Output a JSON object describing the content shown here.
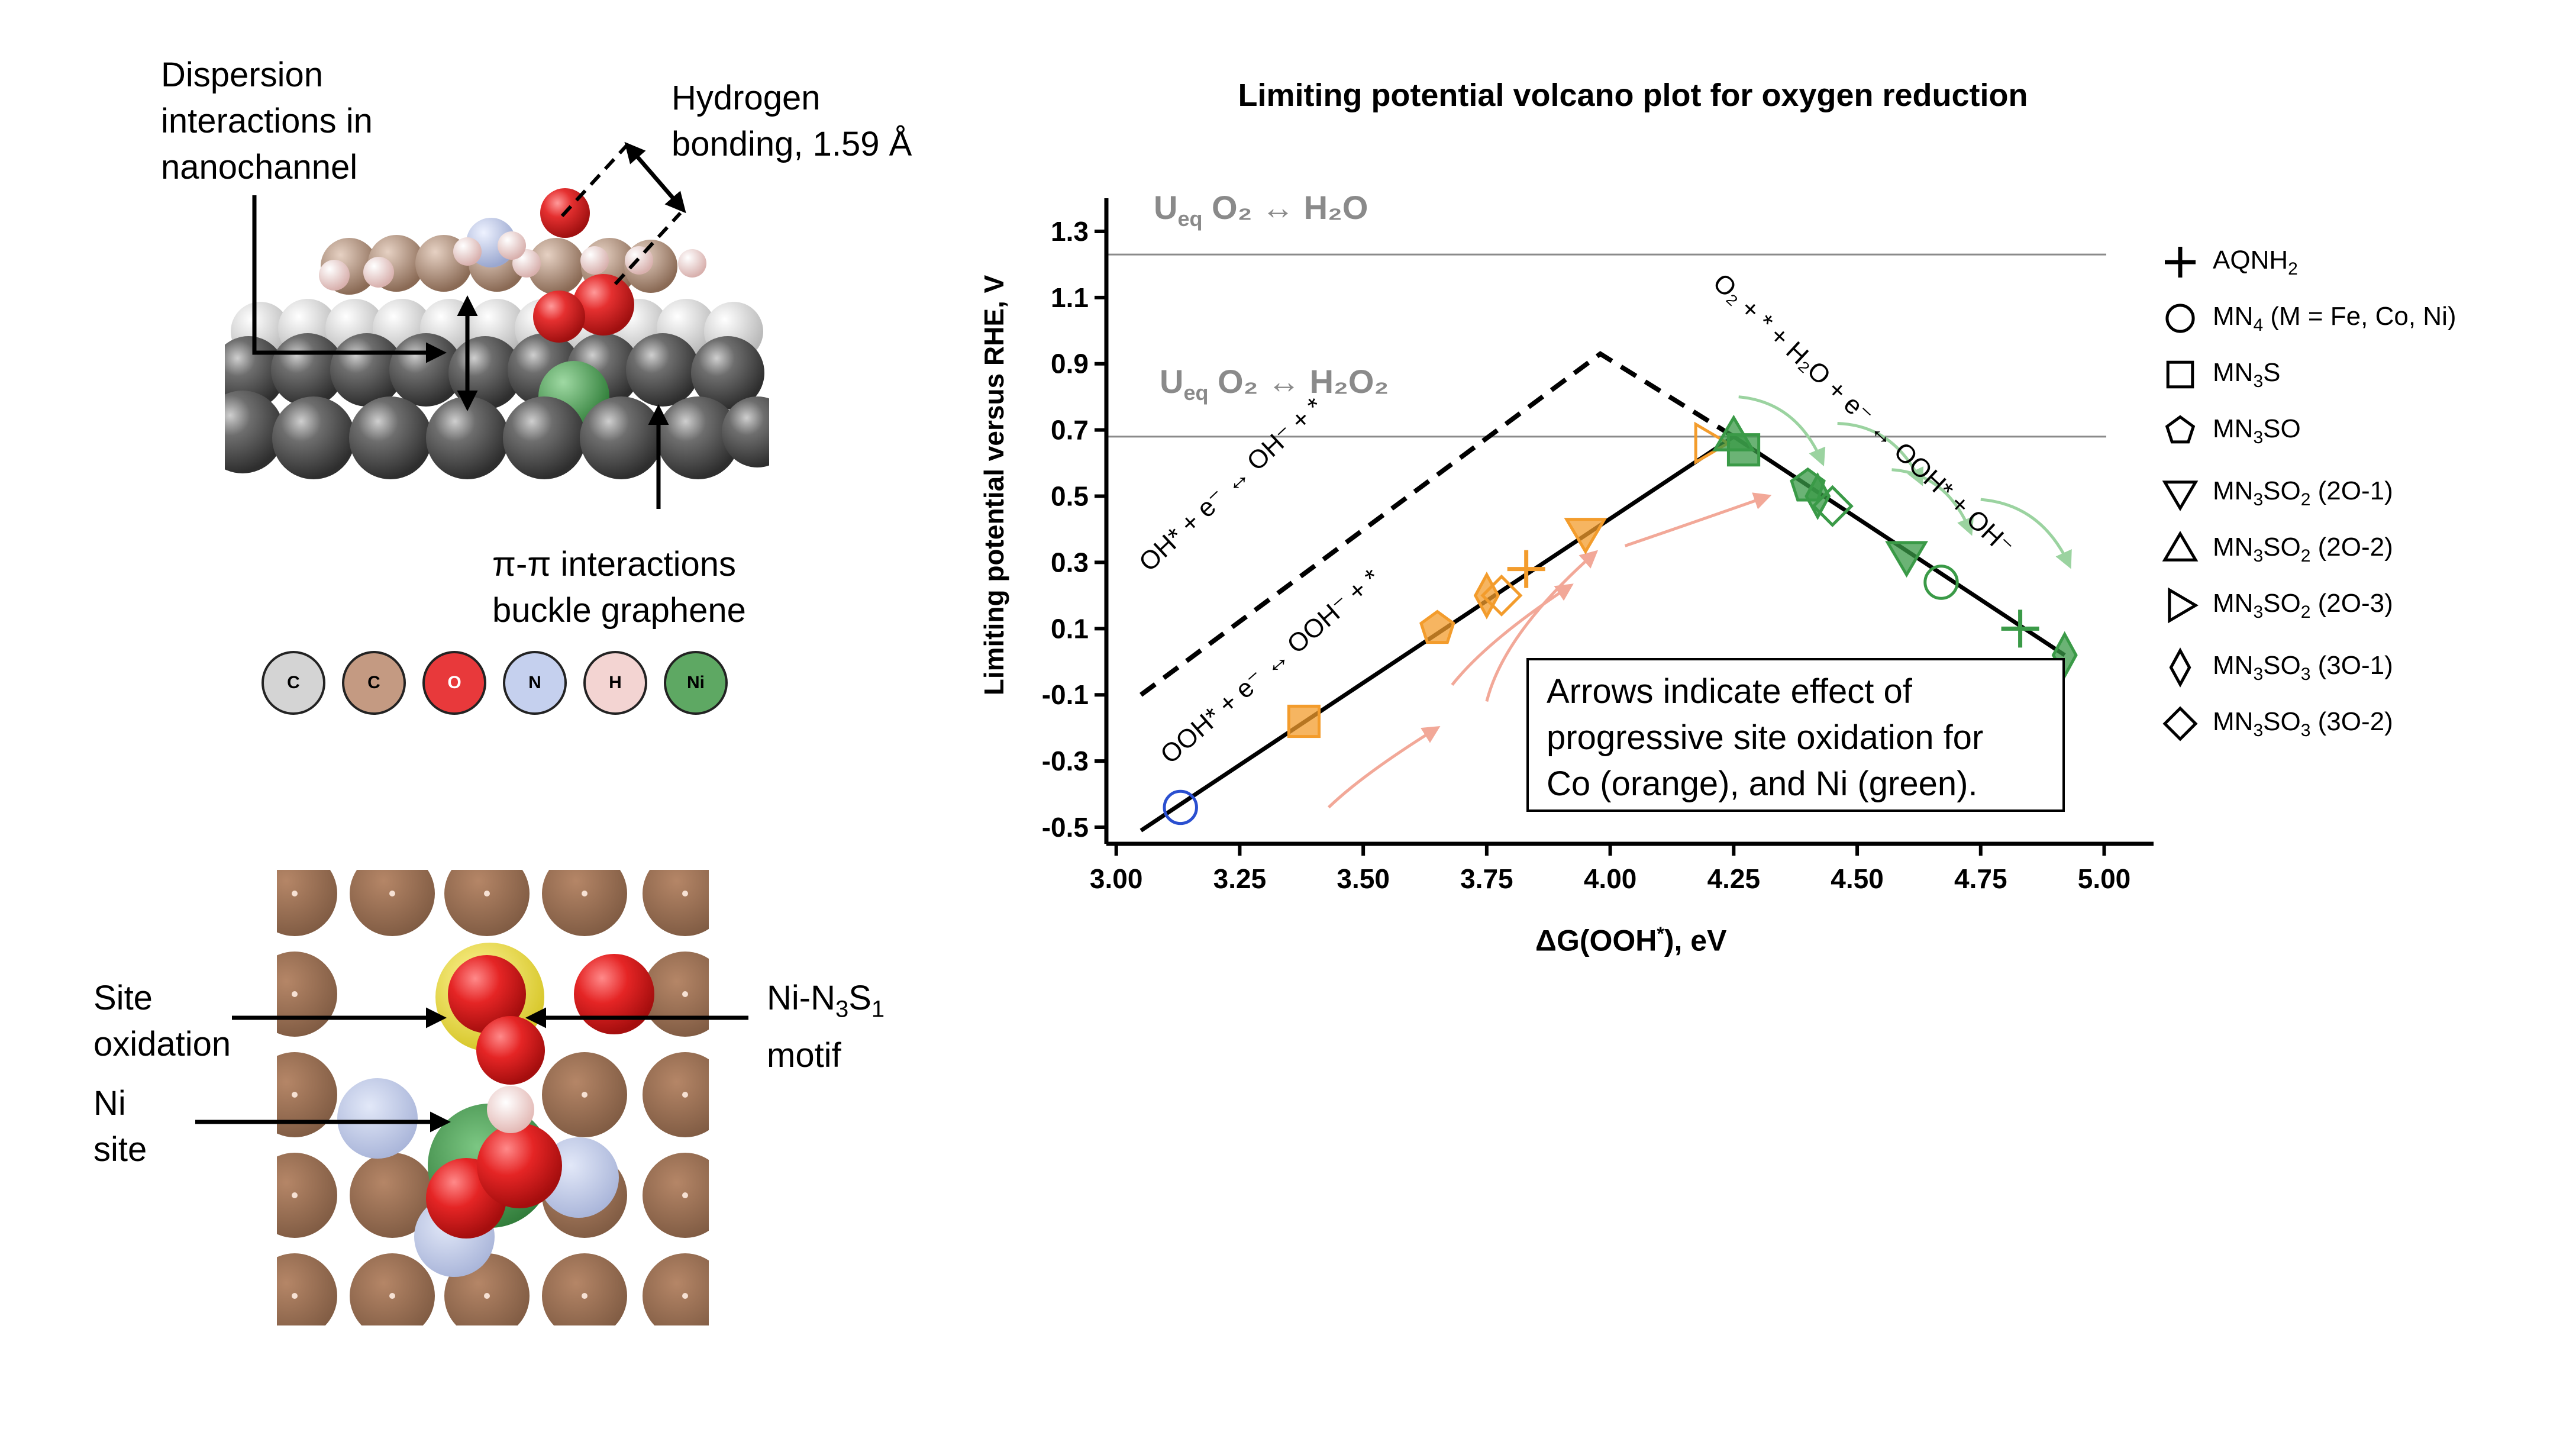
{
  "panel_molecule": {
    "dispersion_label": [
      "Dispersion",
      "interactions in",
      "nanochannel"
    ],
    "hbond_label": [
      "Hydrogen",
      "bonding, 1.59 Å"
    ],
    "pipi_label": [
      "π-π interactions",
      "buckle graphene"
    ],
    "atom_key": [
      {
        "symbol": "C",
        "color": "#d4d4d4"
      },
      {
        "symbol": "C",
        "color": "#c49a82"
      },
      {
        "symbol": "O",
        "color": "#e8393b"
      },
      {
        "symbol": "N",
        "color": "#c5d0ee"
      },
      {
        "symbol": "H",
        "color": "#f3d4d2"
      },
      {
        "symbol": "Ni",
        "color": "#5ea863"
      }
    ]
  },
  "panel_topview": {
    "site_oxidation_label": [
      "Site",
      "oxidation"
    ],
    "ni_site_label": [
      "Ni",
      "site"
    ],
    "motif_label_line1_main": "Ni-N",
    "motif_label_line1_sub1": "3",
    "motif_label_line1_s": "S",
    "motif_label_line1_sub2": "1",
    "motif_label_line2": "motif"
  },
  "chart_data": {
    "type": "scatter",
    "title": "Limiting potential volcano plot for oxygen reduction",
    "xlabel": "ΔG(OOH*), eV",
    "ylabel": "Limiting potential versus RHE, V",
    "xlim": [
      2.98,
      5.1
    ],
    "ylim": [
      -0.55,
      1.4
    ],
    "xticks": [
      "3.00",
      "3.25",
      "3.50",
      "3.75",
      "4.00",
      "4.25",
      "4.50",
      "4.75",
      "5.00"
    ],
    "yticks": [
      "1.3",
      "1.1",
      "0.9",
      "0.7",
      "0.5",
      "0.3",
      "0.1",
      "-0.1",
      "-0.3",
      "-0.5"
    ],
    "ueq_h2o": {
      "value": 1.23,
      "label_main": "U",
      "label_sub": "eq",
      "label_rest": " O₂ ↔ H₂O"
    },
    "ueq_h2o2": {
      "value": 0.68,
      "label_main": "U",
      "label_sub": "eq",
      "label_rest": " O₂ ↔ H₂O₂"
    },
    "volcano_4e": {
      "x": [
        3.05,
        4.25,
        4.92
      ],
      "y": [
        -0.51,
        0.68,
        0.02
      ]
    },
    "volcano_oh": {
      "x": [
        3.05,
        3.98,
        4.25
      ],
      "y": [
        -0.1,
        0.93,
        0.68
      ]
    },
    "line_labels": {
      "oh": "OH* + e⁻ ↔ OH⁻ + *",
      "ooh": "OOH* + e⁻ ↔ OOH⁻ + *",
      "o2": "O₂ + * + H₂O + e⁻ ↔ OOH* + OH⁻"
    },
    "points": [
      {
        "series": "MN4",
        "metal": "Fe",
        "x": 3.13,
        "y": -0.44
      },
      {
        "series": "MN3S",
        "metal": "Co",
        "x": 3.38,
        "y": -0.18
      },
      {
        "series": "MN3SO",
        "metal": "Co",
        "x": 3.65,
        "y": 0.1
      },
      {
        "series": "MN3SO3 (3O-1)",
        "metal": "Co",
        "x": 3.75,
        "y": 0.2
      },
      {
        "series": "MN3SO3 (3O-2)",
        "metal": "Co",
        "x": 3.78,
        "y": 0.2
      },
      {
        "series": "AQNH2",
        "metal": "Co",
        "x": 3.83,
        "y": 0.28
      },
      {
        "series": "MN3SO2 (2O-1)",
        "metal": "Co",
        "x": 3.95,
        "y": 0.39
      },
      {
        "series": "MN3SO2 (2O-3)",
        "metal": "Co",
        "x": 4.2,
        "y": 0.66
      },
      {
        "series": "MN3SO2 (2O-2)",
        "metal": "Ni",
        "x": 4.25,
        "y": 0.68
      },
      {
        "series": "MN3S",
        "metal": "Ni",
        "x": 4.27,
        "y": 0.64
      },
      {
        "series": "MN3SO",
        "metal": "Ni",
        "x": 4.4,
        "y": 0.53
      },
      {
        "series": "MN3SO3 (3O-1)",
        "metal": "Ni",
        "x": 4.42,
        "y": 0.5
      },
      {
        "series": "MN3SO3 (3O-2)",
        "metal": "Ni",
        "x": 4.45,
        "y": 0.47
      },
      {
        "series": "MN3SO2 (2O-1)",
        "metal": "Ni",
        "x": 4.6,
        "y": 0.32
      },
      {
        "series": "MN4",
        "metal": "Ni",
        "x": 4.67,
        "y": 0.24
      },
      {
        "series": "AQNH2",
        "metal": "Ni",
        "x": 4.83,
        "y": 0.1
      },
      {
        "series": "MN3SO3 (3O-1)",
        "metal": "Ni",
        "x": 4.92,
        "y": 0.02
      }
    ],
    "arrows_co": [
      [
        3.43,
        -0.44,
        3.65,
        -0.2
      ],
      [
        3.68,
        -0.07,
        3.92,
        0.23
      ],
      [
        3.75,
        -0.12,
        3.97,
        0.33
      ],
      [
        4.03,
        0.35,
        4.32,
        0.5
      ]
    ],
    "arrows_ni": [
      [
        4.26,
        0.8,
        4.43,
        0.6
      ],
      [
        4.46,
        0.72,
        4.63,
        0.54
      ],
      [
        4.57,
        0.58,
        4.73,
        0.39
      ],
      [
        4.75,
        0.49,
        4.93,
        0.29
      ]
    ],
    "colors": {
      "Co": "#f39c2c",
      "Ni": "#3a9a47",
      "Fe": "#2a4fd0",
      "co_arrow": "#f2a898",
      "ni_arrow": "#9bd3a0"
    },
    "annotation": [
      "Arrows indicate effect of",
      "progressive site oxidation for",
      "Co (orange), and Ni (green)."
    ],
    "legend": [
      {
        "series": "AQNH2",
        "marker": "plus",
        "main": "AQNH",
        "sub": "2",
        "rest": ""
      },
      {
        "series": "MN4",
        "marker": "circle",
        "main": "MN",
        "sub": "4",
        "rest": " (M = Fe, Co, Ni)"
      },
      {
        "series": "MN3S",
        "marker": "square",
        "main": "MN",
        "sub": "3",
        "rest": "S"
      },
      {
        "series": "MN3SO",
        "marker": "pentagon",
        "main": "MN",
        "sub": "3",
        "rest": "SO"
      },
      {
        "series": "MN3SO2 (2O-1)",
        "marker": "tri_down",
        "main": "MN",
        "sub": "3",
        "rest": "SO",
        "sub2": "2",
        "tail": " (2O-1)"
      },
      {
        "series": "MN3SO2 (2O-2)",
        "marker": "tri_up",
        "main": "MN",
        "sub": "3",
        "rest": "SO",
        "sub2": "2",
        "tail": " (2O-2)"
      },
      {
        "series": "MN3SO2 (2O-3)",
        "marker": "tri_right",
        "main": "MN",
        "sub": "3",
        "rest": "SO",
        "sub2": "2",
        "tail": " (2O-3)"
      },
      {
        "series": "MN3SO3 (3O-1)",
        "marker": "thin_diamond",
        "main": "MN",
        "sub": "3",
        "rest": "SO",
        "sub2": "3",
        "tail": " (3O-1)"
      },
      {
        "series": "MN3SO3 (3O-2)",
        "marker": "diamond",
        "main": "MN",
        "sub": "3",
        "rest": "SO",
        "sub2": "3",
        "tail": " (3O-2)"
      }
    ]
  }
}
